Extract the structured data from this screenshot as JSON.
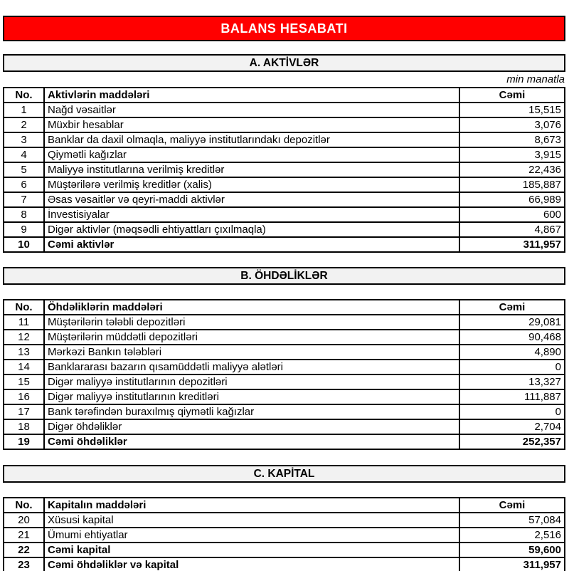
{
  "page": {
    "title": "BALANS HESABATI",
    "unit_note": "min manatla",
    "colors": {
      "banner_bg": "#FF0000",
      "banner_text": "#FFFFFF",
      "section_header_bg": "#F2F2F2",
      "border": "#000000"
    }
  },
  "sections": [
    {
      "id": "A",
      "header": "A. AKTİVLƏR",
      "columns": {
        "no": "No.",
        "item": "Aktivlərin maddələri",
        "total": "Cəmi"
      },
      "rows": [
        {
          "no": "1",
          "item": "Nağd vəsaitlər",
          "value": "15,515"
        },
        {
          "no": "2",
          "item": "Müxbir hesablar",
          "value": "3,076"
        },
        {
          "no": "3",
          "item": "Banklar da daxil olmaqla, maliyyə institutlarındakı depozitlər",
          "value": "8,673"
        },
        {
          "no": "4",
          "item": "Qiymətli kağızlar",
          "value": "3,915"
        },
        {
          "no": "5",
          "item": "Maliyyə institutlarına verilmiş kreditlər",
          "value": "22,436"
        },
        {
          "no": "6",
          "item": "Müştərilərə verilmiş kreditlər (xalis)",
          "value": "185,887"
        },
        {
          "no": "7",
          "item": "Əsas vəsaitlər və qeyri-maddi aktivlər",
          "value": "66,989"
        },
        {
          "no": "8",
          "item": "İnvestisiyalar",
          "value": "600"
        },
        {
          "no": "9",
          "item": "Digər aktivlər (məqsədli ehtiyattları çıxılmaqla)",
          "value": "4,867"
        },
        {
          "no": "10",
          "item": "Cəmi aktivlər",
          "value": "311,957"
        }
      ]
    },
    {
      "id": "B",
      "header": "B. ÖHDƏLİKLƏR",
      "columns": {
        "no": "No.",
        "item": "Öhdəliklərin maddələri",
        "total": "Cəmi"
      },
      "rows": [
        {
          "no": "11",
          "item": "Müştərilərin tələbli depozitləri",
          "value": "29,081"
        },
        {
          "no": "12",
          "item": "Müştərilərin müddətli depozitləri",
          "value": "90,468"
        },
        {
          "no": "13",
          "item": "Mərkəzi Bankın tələbləri",
          "value": "4,890"
        },
        {
          "no": "14",
          "item": "Banklararası bazarın qısamüddətli maliyyə alətləri",
          "value": "0"
        },
        {
          "no": "15",
          "item": "Digər maliyyə institutlarının depozitləri",
          "value": "13,327"
        },
        {
          "no": "16",
          "item": "Digər maliyyə institutlarının kreditləri",
          "value": "111,887"
        },
        {
          "no": "17",
          "item": "Bank tərəfindən buraxılmış qiymətli kağızlar",
          "value": "0"
        },
        {
          "no": "18",
          "item": "Digər öhdəliklər",
          "value": "2,704"
        },
        {
          "no": "19",
          "item": "Cəmi öhdəliklər",
          "value": "252,357"
        }
      ]
    },
    {
      "id": "C",
      "header": "C. KAPİTAL",
      "columns": {
        "no": "No.",
        "item": "Kapitalın maddələri",
        "total": "Cəmi"
      },
      "rows": [
        {
          "no": "20",
          "item": "Xüsusi kapital",
          "value": "57,084"
        },
        {
          "no": "21",
          "item": "Ümumi ehtiyatlar",
          "value": "2,516"
        },
        {
          "no": "22",
          "item": "Cəmi kapital",
          "value": "59,600"
        },
        {
          "no": "23",
          "item": "Cəmi öhdəliklər və kapital",
          "value": "311,957"
        }
      ]
    }
  ]
}
